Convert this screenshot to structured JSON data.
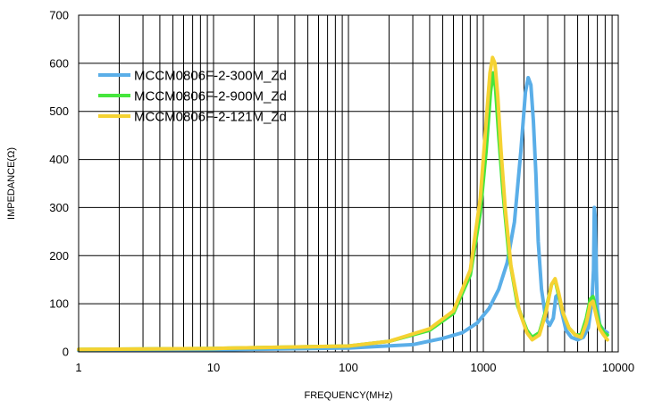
{
  "chart_data": {
    "type": "line",
    "title": "",
    "xlabel": "FREQUENCY(MHz)",
    "ylabel": "IMPEDANCE(Ω)",
    "x_scale": "log",
    "xlim": [
      1,
      10000
    ],
    "ylim": [
      0,
      700
    ],
    "x_ticks": [
      1,
      10,
      100,
      1000,
      10000
    ],
    "x_tick_labels": [
      "1",
      "10",
      "100",
      "1000",
      "10000"
    ],
    "y_ticks": [
      0,
      100,
      200,
      300,
      400,
      500,
      600,
      700
    ],
    "y_tick_labels": [
      "0",
      "100",
      "200",
      "300",
      "400",
      "500",
      "600",
      "700"
    ],
    "grid": true,
    "legend_position": "top-left",
    "series": [
      {
        "name": "MCCM0806F-2-300M_Zd",
        "color": "#5aaee8",
        "x": [
          1,
          10,
          100,
          300,
          500,
          700,
          900,
          1100,
          1300,
          1500,
          1700,
          1900,
          2050,
          2150,
          2250,
          2350,
          2450,
          2550,
          2700,
          2900,
          3100,
          3300,
          3450,
          3600,
          3800,
          4100,
          4500,
          5000,
          5500,
          6000,
          6200,
          6400,
          6550,
          6650,
          6750,
          6850,
          7000,
          7300,
          7800,
          8300
        ],
        "values": [
          3,
          4,
          8,
          15,
          28,
          40,
          60,
          90,
          130,
          185,
          270,
          420,
          540,
          570,
          555,
          480,
          370,
          230,
          130,
          70,
          55,
          70,
          115,
          120,
          85,
          45,
          30,
          25,
          30,
          50,
          80,
          110,
          170,
          300,
          280,
          190,
          90,
          55,
          45,
          40
        ]
      },
      {
        "name": "MCCM0806F-2-900M_Zd",
        "color": "#46e63c",
        "x": [
          1,
          10,
          100,
          200,
          400,
          600,
          800,
          950,
          1050,
          1130,
          1180,
          1230,
          1300,
          1400,
          1550,
          1800,
          2100,
          2300,
          2600,
          2900,
          3200,
          3400,
          3600,
          3900,
          4300,
          4800,
          5300,
          5800,
          6200,
          6500,
          6800,
          7200,
          7800,
          8300
        ],
        "values": [
          5,
          7,
          12,
          22,
          45,
          80,
          160,
          290,
          420,
          540,
          580,
          550,
          450,
          330,
          200,
          95,
          45,
          30,
          40,
          85,
          140,
          150,
          120,
          80,
          50,
          35,
          35,
          70,
          110,
          115,
          90,
          60,
          40,
          35
        ]
      },
      {
        "name": "MCCM0806F-2-121M_Zd",
        "color": "#f5d232",
        "x": [
          1,
          10,
          100,
          200,
          400,
          600,
          800,
          950,
          1050,
          1120,
          1170,
          1220,
          1280,
          1350,
          1450,
          1600,
          1850,
          2100,
          2300,
          2600,
          2900,
          3200,
          3400,
          3600,
          3900,
          4300,
          4800,
          5300,
          5800,
          6200,
          6500,
          6800,
          7200,
          7800,
          8300
        ],
        "values": [
          5,
          7,
          12,
          22,
          48,
          85,
          170,
          320,
          480,
          580,
          612,
          600,
          530,
          420,
          300,
          180,
          85,
          40,
          25,
          35,
          80,
          140,
          152,
          125,
          80,
          50,
          35,
          30,
          60,
          100,
          105,
          80,
          50,
          35,
          25
        ]
      }
    ]
  }
}
